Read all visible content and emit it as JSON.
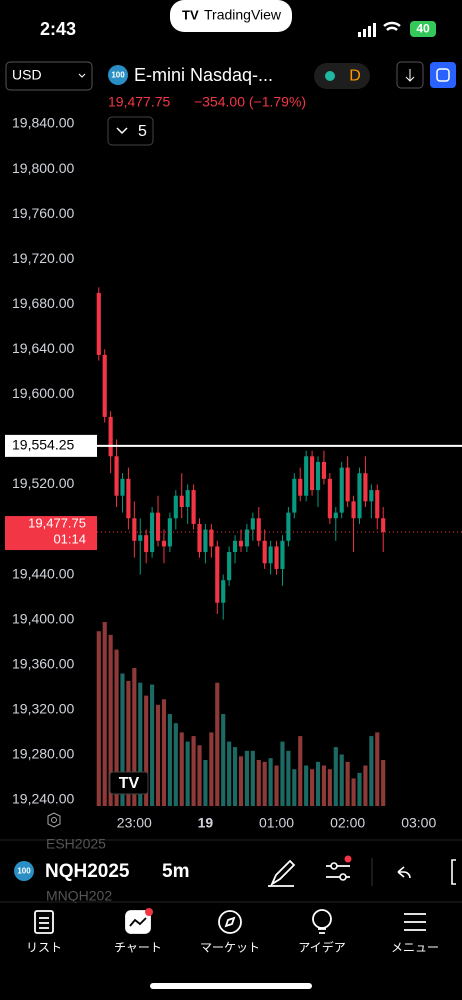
{
  "status_bar": {
    "time": "2:43",
    "app": "TradingView",
    "battery": "40"
  },
  "header": {
    "currency": "USD",
    "symbol_badge": "100",
    "symbol": "E-mini Nasdaq-...",
    "interval_badge": "D",
    "price": "19,477.75",
    "change": "−354.00 (−1.79%)",
    "indicators": "5"
  },
  "chart_data": {
    "type": "candlestick",
    "open": [
      19690,
      19635,
      19580,
      19545,
      19510,
      19525,
      19490,
      19470,
      19475,
      19460,
      19495,
      19470,
      19465,
      19490,
      19510,
      19500,
      19515,
      19485,
      19460,
      19480,
      19465,
      19415,
      19435,
      19460,
      19470,
      19465,
      19480,
      19490,
      19470,
      19450,
      19465,
      19445,
      19470,
      19495,
      19525,
      19510,
      19545,
      19515,
      19540,
      19525,
      19490,
      19495,
      19535,
      19505,
      19490,
      19530,
      19505,
      19515,
      19490
    ],
    "high": [
      19695,
      19640,
      19585,
      19560,
      19530,
      19535,
      19505,
      19490,
      19480,
      19500,
      19510,
      19480,
      19495,
      19515,
      19530,
      19520,
      19520,
      19490,
      19485,
      19485,
      19470,
      19440,
      19465,
      19475,
      19480,
      19485,
      19495,
      19500,
      19480,
      19470,
      19470,
      19475,
      19500,
      19530,
      19535,
      19550,
      19550,
      19545,
      19550,
      19530,
      19500,
      19540,
      19545,
      19510,
      19535,
      19545,
      19520,
      19520,
      19500
    ],
    "low": [
      19630,
      19575,
      19530,
      19500,
      19495,
      19480,
      19455,
      19440,
      19450,
      19455,
      19465,
      19450,
      19460,
      19480,
      19490,
      19485,
      19480,
      19455,
      19450,
      19455,
      19405,
      19400,
      19430,
      19450,
      19460,
      19460,
      19470,
      19465,
      19445,
      19440,
      19440,
      19430,
      19465,
      19490,
      19505,
      19505,
      19510,
      19500,
      19520,
      19485,
      19470,
      19490,
      19500,
      19460,
      19485,
      19500,
      19490,
      19480,
      19460
    ],
    "close": [
      19635,
      19580,
      19545,
      19510,
      19525,
      19490,
      19470,
      19475,
      19460,
      19495,
      19470,
      19465,
      19490,
      19510,
      19500,
      19515,
      19485,
      19460,
      19480,
      19465,
      19415,
      19435,
      19460,
      19470,
      19465,
      19480,
      19490,
      19470,
      19450,
      19465,
      19445,
      19470,
      19495,
      19525,
      19510,
      19545,
      19515,
      19540,
      19525,
      19490,
      19495,
      19535,
      19505,
      19490,
      19530,
      19505,
      19515,
      19490,
      19477.75
    ],
    "volume": [
      95,
      100,
      93,
      85,
      72,
      68,
      75,
      67,
      60,
      66,
      55,
      58,
      50,
      45,
      40,
      35,
      38,
      33,
      25,
      40,
      67,
      50,
      35,
      32,
      27,
      30,
      30,
      25,
      24,
      26,
      22,
      35,
      30,
      20,
      38,
      22,
      20,
      24,
      22,
      20,
      32,
      28,
      24,
      15,
      18,
      22,
      38,
      40,
      25
    ],
    "up_color": "#089981",
    "down_color": "#f23645",
    "volume_up_color": "#1d6a64",
    "volume_down_color": "#8e3a38",
    "ylim": [
      19231,
      19848
    ],
    "vlim": [
      0,
      100
    ],
    "xlim": [
      -0.3,
      61.3
    ],
    "yticks": [
      {
        "value": 19840,
        "label": "19,840.00"
      },
      {
        "value": 19800,
        "label": "19,800.00"
      },
      {
        "value": 19760,
        "label": "19,760.00"
      },
      {
        "value": 19720,
        "label": "19,720.00"
      },
      {
        "value": 19680,
        "label": "19,680.00"
      },
      {
        "value": 19640,
        "label": "19,640.00"
      },
      {
        "value": 19600,
        "label": "19,600.00"
      },
      {
        "value": 19520,
        "label": "19,520.00"
      },
      {
        "value": 19440,
        "label": "19,440.00"
      },
      {
        "value": 19400,
        "label": "19,400.00"
      },
      {
        "value": 19360,
        "label": "19,360.00"
      },
      {
        "value": 19320,
        "label": "19,320.00"
      },
      {
        "value": 19280,
        "label": "19,280.00"
      },
      {
        "value": 19240,
        "label": "19,240.00"
      }
    ],
    "xticks": [
      {
        "value": 6,
        "label": "23:00"
      },
      {
        "value": 18,
        "label": "19"
      },
      {
        "value": 30,
        "label": "01:00"
      },
      {
        "value": 42,
        "label": "02:00"
      },
      {
        "value": 54,
        "label": "03:00"
      }
    ],
    "price_line": {
      "value": 19554.25,
      "label": "19,554.25"
    },
    "last_price": {
      "value": 19477.75,
      "label": "19,477.75",
      "countdown": "01:14"
    }
  },
  "toolbar": {
    "badge": "100",
    "symbol": "NQH2025",
    "interval": "5m",
    "prev_symbol": "ESH2025",
    "next_symbol": "MNQH202"
  },
  "nav": [
    "リスト",
    "チャート",
    "マーケット",
    "アイデア",
    "メニュー"
  ]
}
